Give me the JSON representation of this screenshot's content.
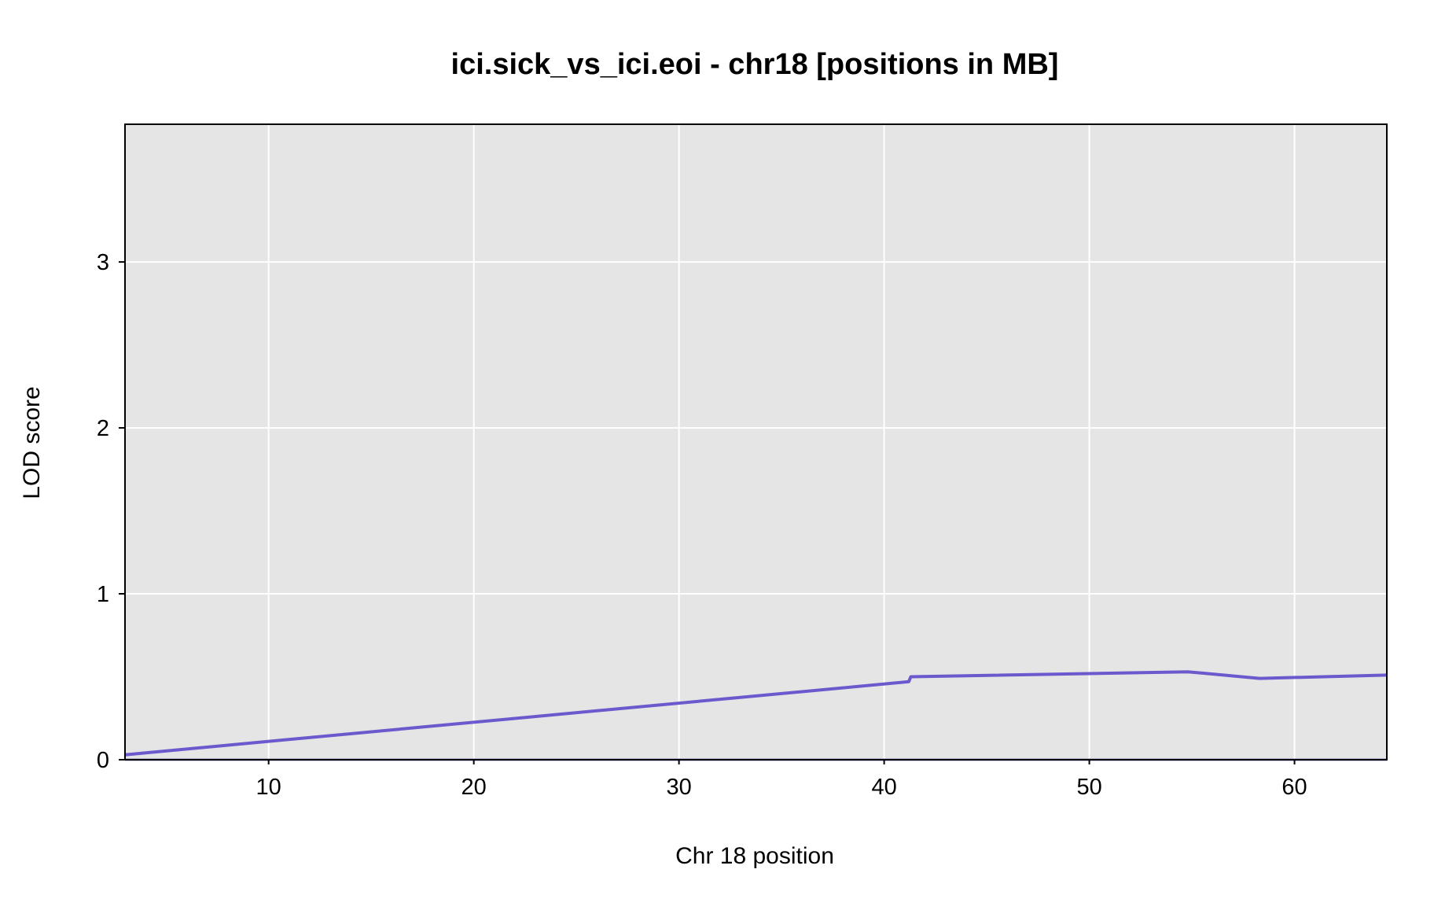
{
  "chart_data": {
    "type": "line",
    "title": "ici.sick_vs_ici.eoi - chr18 [positions in MB]",
    "xlabel": "Chr 18 position",
    "ylabel": "LOD score",
    "xlim": [
      3,
      64.5
    ],
    "ylim": [
      0,
      3.83
    ],
    "x_ticks": [
      10,
      20,
      30,
      40,
      50,
      60
    ],
    "y_ticks": [
      0,
      1,
      2,
      3
    ],
    "grid": true,
    "series": [
      {
        "color": "#6a5acd",
        "x": [
          3.0,
          41.2,
          41.3,
          54.8,
          58.3,
          64.5
        ],
        "y": [
          0.03,
          0.47,
          0.5,
          0.53,
          0.49,
          0.51
        ]
      }
    ],
    "colors": {
      "plot_background": "#e5e5e5",
      "grid": "#ffffff",
      "baseline": "#27248a"
    }
  }
}
